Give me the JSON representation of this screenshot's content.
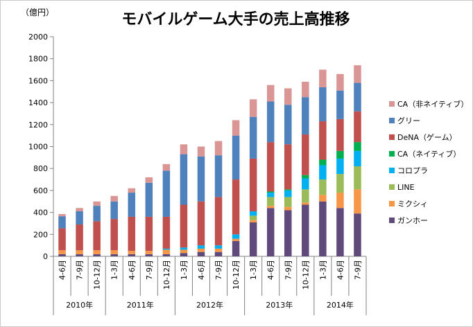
{
  "chart_data": {
    "type": "bar",
    "stacked": true,
    "title": "モバイルゲーム大手の売上高推移",
    "unit_label": "（億円）",
    "xlabel": "",
    "ylabel": "",
    "ylim": [
      0,
      2000
    ],
    "yticks": [
      0,
      200,
      400,
      600,
      800,
      1000,
      1200,
      1400,
      1600,
      1800,
      2000
    ],
    "grid": false,
    "legend_position": "right",
    "categories": [
      "4-6月",
      "7-9月",
      "10-12月",
      "1-3月",
      "4-6月",
      "7-9月",
      "10-12月",
      "1-3月",
      "4-6月",
      "7-9月",
      "10-12月",
      "1-3月",
      "4-6月",
      "7-9月",
      "10-12月",
      "1-3月",
      "4-6月",
      "7-9月"
    ],
    "year_groups": [
      {
        "label": "2010年",
        "count": 3
      },
      {
        "label": "2011年",
        "count": 4
      },
      {
        "label": "2012年",
        "count": 4
      },
      {
        "label": "2013年",
        "count": 4
      },
      {
        "label": "2014年",
        "count": 3
      }
    ],
    "series": [
      {
        "name": "ガンホー",
        "color": "#604a7b",
        "values": [
          20,
          20,
          20,
          20,
          20,
          20,
          20,
          30,
          40,
          40,
          140,
          310,
          440,
          420,
          470,
          500,
          440,
          390
        ]
      },
      {
        "name": "ミクシィ",
        "color": "#f79646",
        "values": [
          35,
          35,
          35,
          35,
          30,
          30,
          40,
          30,
          30,
          30,
          20,
          20,
          20,
          30,
          20,
          60,
          140,
          220
        ]
      },
      {
        "name": "LINE",
        "color": "#9bbb59",
        "values": [
          0,
          0,
          0,
          0,
          0,
          0,
          0,
          0,
          0,
          0,
          0,
          40,
          80,
          90,
          120,
          140,
          170,
          210
        ]
      },
      {
        "name": "コロプラ",
        "color": "#00b0f0",
        "values": [
          0,
          0,
          0,
          0,
          0,
          0,
          10,
          20,
          30,
          30,
          40,
          40,
          40,
          60,
          100,
          130,
          140,
          140
        ]
      },
      {
        "name": "CA（ネイティブ）",
        "color": "#00b050",
        "values": [
          0,
          0,
          0,
          0,
          0,
          0,
          0,
          0,
          0,
          0,
          0,
          0,
          10,
          10,
          30,
          50,
          70,
          80
        ]
      },
      {
        "name": "DeNA（ゲーム）",
        "color": "#c0504d",
        "values": [
          200,
          235,
          265,
          285,
          310,
          310,
          290,
          390,
          400,
          440,
          500,
          480,
          450,
          410,
          370,
          350,
          290,
          280
        ]
      },
      {
        "name": "グリー",
        "color": "#4f81bd",
        "values": [
          110,
          120,
          140,
          160,
          220,
          310,
          420,
          460,
          410,
          380,
          400,
          380,
          370,
          360,
          340,
          310,
          260,
          260
        ]
      },
      {
        "name": "CA（非ネイティブ）",
        "color": "#d99694",
        "values": [
          20,
          30,
          40,
          50,
          40,
          50,
          60,
          90,
          90,
          130,
          140,
          160,
          150,
          150,
          140,
          160,
          150,
          160
        ]
      }
    ]
  }
}
